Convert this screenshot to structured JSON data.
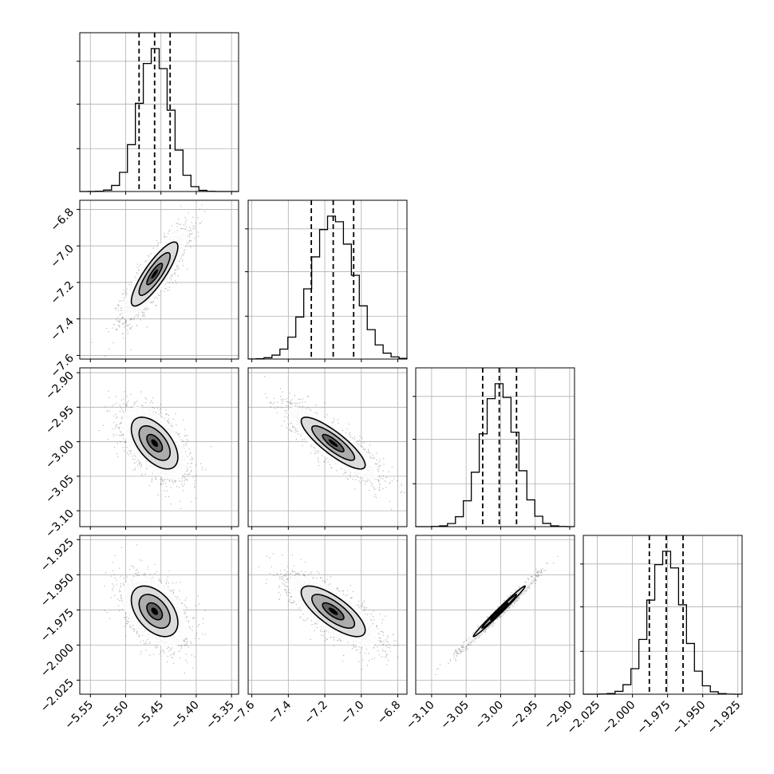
{
  "chart_data": {
    "type": "corner",
    "parameters": [
      {
        "range": [
          -5.565,
          -5.34
        ],
        "ticks": [
          -5.55,
          -5.5,
          -5.45,
          -5.4,
          -5.35
        ],
        "tick_labels": [
          "−5.55",
          "−5.50",
          "−5.45",
          "−5.40",
          "−5.35"
        ],
        "quantiles": [
          -5.481,
          -5.459,
          -5.437
        ],
        "mean": -5.459,
        "sd": 0.022
      },
      {
        "range": [
          -7.62,
          -6.75
        ],
        "ticks": [
          -7.6,
          -7.4,
          -7.2,
          -7.0,
          -6.8
        ],
        "tick_labels": [
          "−7.6",
          "−7.4",
          "−7.2",
          "−7.0",
          "−6.8"
        ],
        "quantiles": [
          -7.274,
          -7.154,
          -7.042
        ],
        "mean": -7.154,
        "sd": 0.117
      },
      {
        "range": [
          -3.123,
          -2.893
        ],
        "ticks": [
          -3.1,
          -3.05,
          -3.0,
          -2.95,
          -2.9
        ],
        "tick_labels": [
          "−3.10",
          "−3.05",
          "−3.00",
          "−2.95",
          "−2.90"
        ],
        "quantiles": [
          -3.026,
          -3.002,
          -2.977
        ],
        "mean": -3.002,
        "sd": 0.025
      },
      {
        "range": [
          -2.035,
          -1.922
        ],
        "ticks": [
          -2.025,
          -2.0,
          -1.975,
          -1.95,
          -1.925
        ],
        "tick_labels": [
          "−2.025",
          "−2.000",
          "−1.975",
          "−1.950",
          "−1.925"
        ],
        "quantiles": [
          -1.988,
          -1.976,
          -1.964
        ],
        "mean": -1.976,
        "sd": 0.012
      }
    ],
    "correlations": {
      "0-1": 0.85,
      "0-2": -0.55,
      "0-3": -0.45,
      "1-2": -0.85,
      "1-3": -0.75,
      "2-3": 0.99
    },
    "histogram_bins": 20,
    "contour_levels": [
      0.5,
      1.0,
      1.5
    ],
    "grid": true,
    "colors": {
      "line": "#000000",
      "grid": "#b0b0b0",
      "sample": "#333333",
      "density": "#000000"
    }
  }
}
